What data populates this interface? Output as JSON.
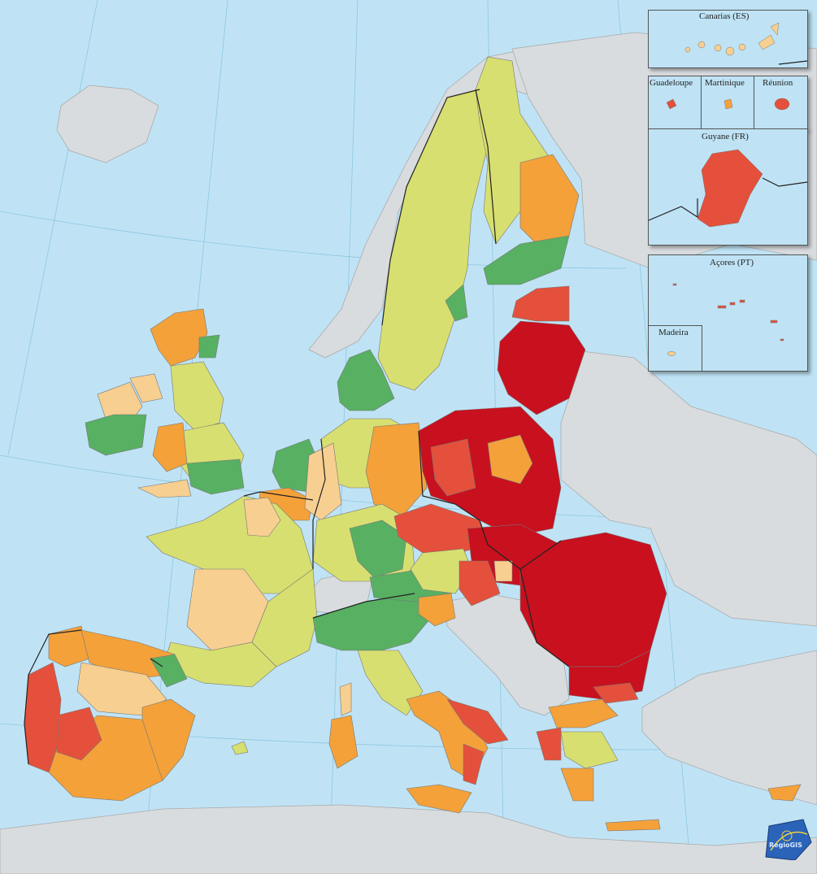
{
  "colors": {
    "sea": "#bfe3f5",
    "non_eu": "#d9dcdf",
    "green": "#58b063",
    "light_green": "#d7df70",
    "light_orange": "#f7cf91",
    "orange": "#f4a13a",
    "red_orange": "#e4503b",
    "dark_red": "#c8101f",
    "border": "#888888",
    "national_border": "#222222"
  },
  "insets": {
    "canarias": "Canarias (ES)",
    "guadeloupe": "Guadeloupe",
    "martinique": "Martinique",
    "reunion": "Réunion",
    "guyane": "Guyane (FR)",
    "acores": "Açores (PT)",
    "madeira": "Madeira"
  },
  "logo": {
    "text": "RegioGIS"
  }
}
